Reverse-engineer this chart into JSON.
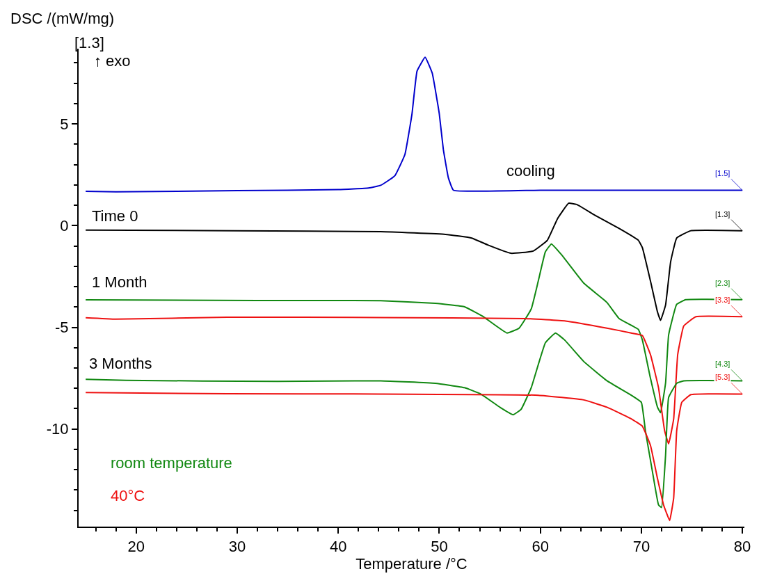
{
  "chart_data": {
    "type": "line",
    "ylabel": "DSC /(mW/mg)",
    "xlabel": "Temperature /°C",
    "xlim": [
      14.3,
      80.2
    ],
    "ylim": [
      -14.8,
      8.7
    ],
    "xticks": [
      20,
      30,
      40,
      50,
      60,
      70,
      80
    ],
    "yticks": [
      -10,
      -5,
      0,
      5
    ],
    "marker": "none",
    "line_style": "solid",
    "series": [
      {
        "color": "#0000cc",
        "x": [
          15,
          18,
          30,
          40,
          43,
          44.2,
          45.6,
          46.6,
          47.3,
          47.8,
          48.6,
          49.3,
          50.0,
          50.4,
          50.9,
          51.4,
          60,
          70,
          80
        ],
        "values": [
          1.69,
          1.66,
          1.72,
          1.77,
          1.85,
          1.98,
          2.45,
          3.5,
          5.5,
          7.6,
          8.28,
          7.5,
          5.5,
          3.75,
          2.35,
          1.74,
          1.74,
          1.74,
          1.74
        ]
      },
      {
        "color": "#000000",
        "x": [
          15,
          30,
          44.2,
          50.6,
          53.2,
          54.8,
          57.1,
          59.3,
          60.7,
          61.7,
          62.8,
          63.6,
          65.4,
          67.8,
          69.7,
          70.1,
          70.9,
          71.6,
          71.9,
          72.4,
          72.9,
          73.5,
          74.9,
          80
        ],
        "values": [
          -0.22,
          -0.25,
          -0.3,
          -0.43,
          -0.61,
          -0.95,
          -1.36,
          -1.25,
          -0.72,
          0.34,
          1.1,
          1.04,
          0.51,
          -0.14,
          -0.72,
          -1.08,
          -2.72,
          -4.25,
          -4.66,
          -3.9,
          -1.78,
          -0.61,
          -0.25,
          -0.25
        ]
      },
      {
        "color": "#118811",
        "x": [
          15,
          32,
          44.2,
          49.6,
          52.5,
          54.3,
          56.7,
          57.9,
          59.1,
          59.8,
          60.5,
          61.1,
          62.1,
          64.3,
          66.6,
          67.8,
          69.7,
          70.1,
          70.9,
          71.6,
          71.9,
          72.4,
          72.7,
          73.5,
          74.4,
          80
        ],
        "values": [
          -3.65,
          -3.68,
          -3.69,
          -3.82,
          -3.99,
          -4.46,
          -5.28,
          -5.04,
          -4.1,
          -2.72,
          -1.29,
          -0.9,
          -1.43,
          -2.83,
          -3.78,
          -4.57,
          -5.1,
          -5.62,
          -7.5,
          -8.93,
          -9.2,
          -7.73,
          -5.38,
          -3.87,
          -3.64,
          -3.64
        ]
      },
      {
        "color": "#ee1111",
        "x": [
          15,
          18,
          29,
          44.2,
          58.5,
          62.5,
          66.6,
          69,
          70.1,
          70.9,
          71.7,
          72.3,
          72.7,
          73.2,
          73.6,
          74.2,
          75.4,
          80
        ],
        "values": [
          -4.53,
          -4.6,
          -4.5,
          -4.52,
          -4.57,
          -4.69,
          -5.04,
          -5.28,
          -5.4,
          -6.34,
          -7.97,
          -10.08,
          -10.73,
          -9.5,
          -6.34,
          -4.93,
          -4.48,
          -4.48
        ]
      },
      {
        "color": "#118811",
        "x": [
          15,
          19,
          34,
          44.2,
          49.6,
          52.5,
          54.1,
          56.0,
          57.3,
          58.1,
          59.1,
          60.5,
          61.5,
          62.4,
          64.3,
          66.6,
          69,
          70.0,
          70.4,
          71.1,
          71.7,
          72.0,
          72.4,
          72.7,
          73.5,
          74.2,
          80
        ],
        "values": [
          -7.56,
          -7.61,
          -7.66,
          -7.63,
          -7.75,
          -7.97,
          -8.28,
          -8.93,
          -9.3,
          -9.03,
          -7.97,
          -5.76,
          -5.28,
          -5.62,
          -6.68,
          -7.63,
          -8.34,
          -8.69,
          -10.08,
          -12.1,
          -13.73,
          -13.86,
          -11.28,
          -8.45,
          -7.75,
          -7.63,
          -7.63
        ]
      },
      {
        "color": "#ee1111",
        "x": [
          15,
          29,
          44.2,
          59.8,
          64.3,
          66.6,
          69,
          70.1,
          70.9,
          71.6,
          72.2,
          72.8,
          73.2,
          73.5,
          74.0,
          74.9,
          80
        ],
        "values": [
          -8.21,
          -8.27,
          -8.28,
          -8.34,
          -8.57,
          -8.93,
          -9.5,
          -9.86,
          -10.8,
          -12.44,
          -13.73,
          -14.5,
          -13.39,
          -10.08,
          -8.69,
          -8.31,
          -8.28
        ]
      }
    ],
    "annotations": [
      "[1.3]",
      "↑ exo",
      "cooling",
      "Time 0",
      "1 Month",
      "3 Months",
      "room temperature",
      "40°C",
      "[1.5]",
      "[1.3]",
      "[2.3]",
      "[3.3]",
      "[4.3]",
      "[5.3]"
    ]
  }
}
